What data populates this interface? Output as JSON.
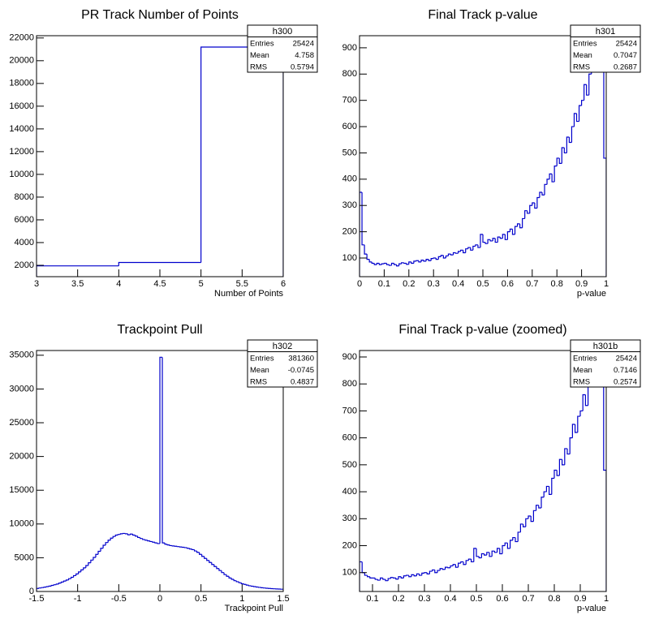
{
  "chart_data": [
    {
      "type": "histogram",
      "title": "PR Track Number of Points",
      "xlabel": "Number of Points",
      "color": "#0000cc",
      "bins": [
        3,
        4,
        5,
        6
      ],
      "values": [
        1950,
        2250,
        21200
      ],
      "xlim": [
        3,
        6
      ],
      "ylim": [
        1000,
        22200
      ],
      "xticks": [
        3,
        3.5,
        4,
        4.5,
        5,
        5.5,
        6
      ],
      "yticks": [
        2000,
        4000,
        6000,
        8000,
        10000,
        12000,
        14000,
        16000,
        18000,
        20000,
        22000
      ],
      "stats": {
        "name": "h300",
        "rows": [
          {
            "label": "Entries",
            "value": 25424
          },
          {
            "label": "Mean",
            "value": 4.758
          },
          {
            "label": "RMS",
            "value": 0.5794
          }
        ]
      }
    },
    {
      "type": "histogram",
      "title": "Final Track p-value",
      "xlabel": "p-value",
      "color": "#0000cc",
      "bins": [
        0,
        0.01,
        0.02,
        0.03,
        0.04,
        0.05,
        0.06,
        0.07,
        0.08,
        0.09,
        0.1,
        0.11,
        0.12,
        0.13,
        0.14,
        0.15,
        0.16,
        0.17,
        0.18,
        0.19,
        0.2,
        0.21,
        0.22,
        0.23,
        0.24,
        0.25,
        0.26,
        0.27,
        0.28,
        0.29,
        0.3,
        0.31,
        0.32,
        0.33,
        0.34,
        0.35,
        0.36,
        0.37,
        0.38,
        0.39,
        0.4,
        0.41,
        0.42,
        0.43,
        0.44,
        0.45,
        0.46,
        0.47,
        0.48,
        0.49,
        0.5,
        0.51,
        0.52,
        0.53,
        0.54,
        0.55,
        0.56,
        0.57,
        0.58,
        0.59,
        0.6,
        0.61,
        0.62,
        0.63,
        0.64,
        0.65,
        0.66,
        0.67,
        0.68,
        0.69,
        0.7,
        0.71,
        0.72,
        0.73,
        0.74,
        0.75,
        0.76,
        0.77,
        0.78,
        0.79,
        0.8,
        0.81,
        0.82,
        0.83,
        0.84,
        0.85,
        0.86,
        0.87,
        0.88,
        0.89,
        0.9,
        0.91,
        0.92,
        0.93,
        0.94,
        0.95,
        0.96,
        0.97,
        0.98,
        0.99,
        1
      ],
      "values": [
        350,
        150,
        115,
        95,
        85,
        80,
        75,
        80,
        75,
        78,
        80,
        75,
        72,
        80,
        75,
        70,
        78,
        82,
        80,
        76,
        85,
        80,
        88,
        90,
        85,
        92,
        88,
        95,
        90,
        98,
        100,
        95,
        105,
        110,
        100,
        108,
        115,
        112,
        120,
        118,
        125,
        130,
        120,
        135,
        140,
        130,
        145,
        150,
        140,
        190,
        160,
        155,
        170,
        165,
        175,
        160,
        180,
        175,
        190,
        170,
        200,
        210,
        190,
        220,
        230,
        215,
        250,
        280,
        270,
        300,
        310,
        290,
        330,
        350,
        340,
        380,
        400,
        420,
        390,
        450,
        480,
        460,
        520,
        500,
        560,
        540,
        600,
        650,
        620,
        680,
        700,
        760,
        720,
        800,
        850,
        900,
        940,
        920,
        940,
        480
      ],
      "xlim": [
        0,
        1
      ],
      "ylim": [
        29,
        946
      ],
      "xticks": [
        0,
        0.1,
        0.2,
        0.3,
        0.4,
        0.5,
        0.6,
        0.7,
        0.8,
        0.9,
        1
      ],
      "yticks": [
        100,
        200,
        300,
        400,
        500,
        600,
        700,
        800,
        900
      ],
      "stats": {
        "name": "h301",
        "rows": [
          {
            "label": "Entries",
            "value": 25424
          },
          {
            "label": "Mean",
            "value": 0.7047
          },
          {
            "label": "RMS",
            "value": 0.2687
          }
        ]
      }
    },
    {
      "type": "histogram",
      "title": "Trackpoint Pull",
      "xlabel": "Trackpoint Pull",
      "color": "#0000cc",
      "bins": [
        -1.5,
        -1.47,
        -1.44,
        -1.41,
        -1.38,
        -1.35,
        -1.32,
        -1.29,
        -1.26,
        -1.23,
        -1.2,
        -1.17,
        -1.14,
        -1.11,
        -1.08,
        -1.05,
        -1.02,
        -0.99,
        -0.96,
        -0.93,
        -0.9,
        -0.87,
        -0.84,
        -0.81,
        -0.78,
        -0.75,
        -0.72,
        -0.69,
        -0.66,
        -0.63,
        -0.6,
        -0.57,
        -0.54,
        -0.51,
        -0.48,
        -0.45,
        -0.42,
        -0.39,
        -0.36,
        -0.33,
        -0.3,
        -0.27,
        -0.24,
        -0.21,
        -0.18,
        -0.15,
        -0.12,
        -0.09,
        -0.06,
        -0.03,
        0,
        0.03,
        0.06,
        0.09,
        0.12,
        0.15,
        0.18,
        0.21,
        0.24,
        0.27,
        0.3,
        0.33,
        0.36,
        0.39,
        0.42,
        0.45,
        0.48,
        0.51,
        0.54,
        0.57,
        0.6,
        0.63,
        0.66,
        0.69,
        0.72,
        0.75,
        0.78,
        0.81,
        0.84,
        0.87,
        0.9,
        0.93,
        0.96,
        0.99,
        1.02,
        1.05,
        1.08,
        1.11,
        1.14,
        1.17,
        1.2,
        1.23,
        1.26,
        1.29,
        1.32,
        1.35,
        1.38,
        1.41,
        1.44,
        1.47,
        1.5
      ],
      "values": [
        450,
        520,
        580,
        650,
        720,
        800,
        900,
        1000,
        1100,
        1250,
        1400,
        1550,
        1700,
        1900,
        2100,
        2350,
        2600,
        2900,
        3200,
        3500,
        3850,
        4250,
        4650,
        5050,
        5500,
        5950,
        6400,
        6850,
        7250,
        7600,
        7900,
        8150,
        8350,
        8450,
        8550,
        8600,
        8550,
        8400,
        8500,
        8350,
        8200,
        8000,
        7850,
        7700,
        7600,
        7500,
        7400,
        7300,
        7200,
        7100,
        34700,
        7200,
        7000,
        6900,
        6800,
        6750,
        6700,
        6650,
        6600,
        6550,
        6500,
        6400,
        6300,
        6200,
        6000,
        5800,
        5500,
        5200,
        4900,
        4600,
        4300,
        4000,
        3700,
        3400,
        3100,
        2800,
        2500,
        2250,
        2000,
        1800,
        1600,
        1450,
        1300,
        1150,
        1050,
        950,
        850,
        780,
        720,
        660,
        610,
        560,
        520,
        480,
        450,
        420,
        400,
        380,
        360,
        340,
        330
      ],
      "xlim": [
        -1.5,
        1.5
      ],
      "ylim": [
        0,
        35700
      ],
      "xticks": [
        -1.5,
        -1,
        -0.5,
        0,
        0.5,
        1,
        1.5
      ],
      "yticks": [
        0,
        5000,
        10000,
        15000,
        20000,
        25000,
        30000,
        35000
      ],
      "stats": {
        "name": "h302",
        "rows": [
          {
            "label": "Entries",
            "value": 381360
          },
          {
            "label": "Mean",
            "value": -0.0745
          },
          {
            "label": "RMS",
            "value": 0.4837
          }
        ]
      }
    },
    {
      "type": "histogram",
      "title": "Final Track p-value (zoomed)",
      "xlabel": "p-value",
      "color": "#0000cc",
      "bins": [
        0.05,
        0.06,
        0.07,
        0.08,
        0.09,
        0.1,
        0.11,
        0.12,
        0.13,
        0.14,
        0.15,
        0.16,
        0.17,
        0.18,
        0.19,
        0.2,
        0.21,
        0.22,
        0.23,
        0.24,
        0.25,
        0.26,
        0.27,
        0.28,
        0.29,
        0.3,
        0.31,
        0.32,
        0.33,
        0.34,
        0.35,
        0.36,
        0.37,
        0.38,
        0.39,
        0.4,
        0.41,
        0.42,
        0.43,
        0.44,
        0.45,
        0.46,
        0.47,
        0.48,
        0.49,
        0.5,
        0.51,
        0.52,
        0.53,
        0.54,
        0.55,
        0.56,
        0.57,
        0.58,
        0.59,
        0.6,
        0.61,
        0.62,
        0.63,
        0.64,
        0.65,
        0.66,
        0.67,
        0.68,
        0.69,
        0.7,
        0.71,
        0.72,
        0.73,
        0.74,
        0.75,
        0.76,
        0.77,
        0.78,
        0.79,
        0.8,
        0.81,
        0.82,
        0.83,
        0.84,
        0.85,
        0.86,
        0.87,
        0.88,
        0.89,
        0.9,
        0.91,
        0.92,
        0.93,
        0.94,
        0.95,
        0.96,
        0.97,
        0.98,
        0.99,
        1
      ],
      "values": [
        140,
        100,
        90,
        85,
        80,
        80,
        75,
        72,
        80,
        75,
        70,
        78,
        82,
        80,
        76,
        85,
        80,
        88,
        90,
        85,
        92,
        88,
        95,
        90,
        98,
        100,
        95,
        105,
        110,
        100,
        108,
        115,
        112,
        120,
        118,
        125,
        130,
        120,
        135,
        140,
        130,
        145,
        150,
        140,
        190,
        160,
        155,
        170,
        165,
        175,
        160,
        180,
        175,
        190,
        170,
        200,
        210,
        190,
        220,
        230,
        215,
        250,
        280,
        270,
        300,
        310,
        290,
        330,
        350,
        340,
        380,
        400,
        420,
        390,
        450,
        480,
        460,
        520,
        500,
        560,
        540,
        600,
        650,
        620,
        680,
        700,
        760,
        720,
        800,
        850,
        900,
        940,
        920,
        940,
        480
      ],
      "xlim": [
        0.05,
        1
      ],
      "ylim": [
        30,
        924
      ],
      "xticks": [
        0.1,
        0.2,
        0.3,
        0.4,
        0.5,
        0.6,
        0.7,
        0.8,
        0.9,
        1
      ],
      "yticks": [
        100,
        200,
        300,
        400,
        500,
        600,
        700,
        800,
        900
      ],
      "stats": {
        "name": "h301b",
        "rows": [
          {
            "label": "Entries",
            "value": 25424
          },
          {
            "label": "Mean",
            "value": 0.7146
          },
          {
            "label": "RMS",
            "value": 0.2574
          }
        ]
      }
    }
  ]
}
